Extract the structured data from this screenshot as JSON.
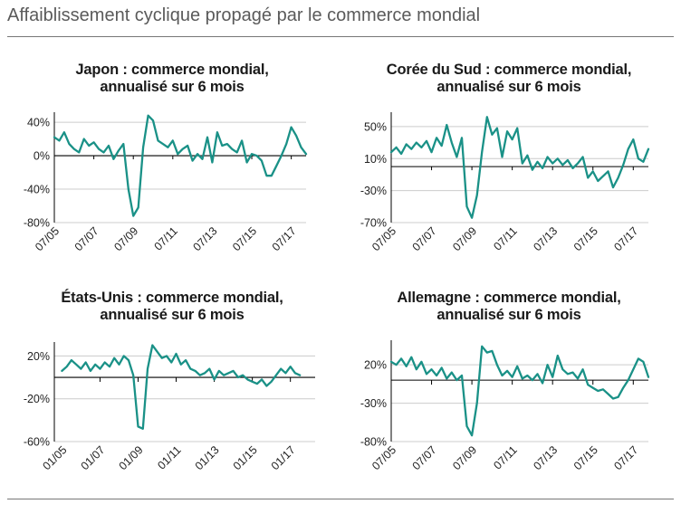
{
  "title": "Affaiblissement cyclique propagé par le commerce mondial",
  "colors": {
    "line": "#1a9187",
    "grid": "#cccccc",
    "axis": "#000000",
    "text": "#222222"
  },
  "chart_data": [
    {
      "type": "line",
      "id": "japon",
      "title_lines": [
        "Japon : commerce mondial,",
        "annualisé sur 6 mois"
      ],
      "title": "Japon : commerce mondial, annualisé sur 6 mois",
      "y_ticks": [
        40,
        0,
        -40,
        -80
      ],
      "y_tick_labels": [
        "40%",
        "0%",
        "-40%",
        "-80%"
      ],
      "ylim": [
        -80,
        52
      ],
      "baseline": 0,
      "xlim": [
        2005.0,
        2017.75
      ],
      "x_ticks": [
        2005.0,
        2007.0,
        2009.0,
        2011.0,
        2013.0,
        2015.0,
        2017.0
      ],
      "x_tick_labels": [
        "07/05",
        "07/07",
        "07/09",
        "07/11",
        "07/13",
        "07/15",
        "07/17"
      ],
      "grid": true,
      "x": [
        2005.0,
        2005.25,
        2005.5,
        2005.75,
        2006.0,
        2006.25,
        2006.5,
        2006.75,
        2007.0,
        2007.25,
        2007.5,
        2007.75,
        2008.0,
        2008.25,
        2008.5,
        2008.75,
        2009.0,
        2009.25,
        2009.5,
        2009.75,
        2010.0,
        2010.25,
        2010.5,
        2010.75,
        2011.0,
        2011.25,
        2011.5,
        2011.75,
        2012.0,
        2012.25,
        2012.5,
        2012.75,
        2013.0,
        2013.25,
        2013.5,
        2013.75,
        2014.0,
        2014.25,
        2014.5,
        2014.75,
        2015.0,
        2015.25,
        2015.5,
        2015.75,
        2016.0,
        2016.25,
        2016.5,
        2016.75,
        2017.0,
        2017.25,
        2017.5,
        2017.75
      ],
      "values": [
        22,
        18,
        28,
        14,
        8,
        4,
        20,
        12,
        16,
        8,
        4,
        12,
        -4,
        6,
        14,
        -40,
        -72,
        -62,
        10,
        48,
        42,
        18,
        14,
        10,
        18,
        2,
        8,
        12,
        -6,
        2,
        -4,
        22,
        -8,
        28,
        12,
        14,
        8,
        4,
        18,
        -8,
        2,
        0,
        -6,
        -24,
        -24,
        -12,
        0,
        14,
        34,
        24,
        10,
        2
      ]
    },
    {
      "type": "line",
      "id": "coree",
      "title_lines": [
        "Corée du Sud : commerce mondial,",
        "annualisé sur 6 mois"
      ],
      "title": "Corée du Sud : commerce mondial, annualisé sur 6 mois",
      "y_ticks": [
        50,
        10,
        -30,
        -70
      ],
      "y_tick_labels": [
        "50%",
        "10%",
        "-30%",
        "-70%"
      ],
      "ylim": [
        -70,
        68
      ],
      "baseline": 0,
      "xlim": [
        2005.0,
        2017.75
      ],
      "x_ticks": [
        2005.0,
        2007.0,
        2009.0,
        2011.0,
        2013.0,
        2015.0,
        2017.0
      ],
      "x_tick_labels": [
        "07/05",
        "07/07",
        "07/09",
        "07/11",
        "07/13",
        "07/15",
        "07/17"
      ],
      "grid": true,
      "x": [
        2005.0,
        2005.25,
        2005.5,
        2005.75,
        2006.0,
        2006.25,
        2006.5,
        2006.75,
        2007.0,
        2007.25,
        2007.5,
        2007.75,
        2008.0,
        2008.25,
        2008.5,
        2008.75,
        2009.0,
        2009.25,
        2009.5,
        2009.75,
        2010.0,
        2010.25,
        2010.5,
        2010.75,
        2011.0,
        2011.25,
        2011.5,
        2011.75,
        2012.0,
        2012.25,
        2012.5,
        2012.75,
        2013.0,
        2013.25,
        2013.5,
        2013.75,
        2014.0,
        2014.25,
        2014.5,
        2014.75,
        2015.0,
        2015.25,
        2015.5,
        2015.75,
        2016.0,
        2016.25,
        2016.5,
        2016.75,
        2017.0,
        2017.25,
        2017.5,
        2017.75
      ],
      "values": [
        18,
        24,
        16,
        28,
        22,
        30,
        24,
        32,
        18,
        36,
        26,
        52,
        30,
        12,
        36,
        -50,
        -64,
        -36,
        18,
        62,
        40,
        48,
        12,
        44,
        34,
        48,
        4,
        14,
        -4,
        6,
        -2,
        12,
        4,
        10,
        2,
        8,
        -2,
        4,
        12,
        -14,
        -6,
        -18,
        -12,
        -6,
        -26,
        -14,
        2,
        22,
        34,
        10,
        6,
        22
      ]
    },
    {
      "type": "line",
      "id": "etats-unis",
      "title_lines": [
        "États-Unis : commerce mondial,",
        "annualisé sur 6 mois"
      ],
      "title": "États-Unis : commerce mondial, annualisé sur 6 mois",
      "y_ticks": [
        20,
        -20,
        -60
      ],
      "y_tick_labels": [
        "20%",
        "-20%",
        "-60%"
      ],
      "ylim": [
        -60,
        33
      ],
      "baseline": 0,
      "xlim": [
        2004.6,
        2018.3
      ],
      "x_ticks": [
        2005.0,
        2007.0,
        2009.0,
        2011.0,
        2013.0,
        2015.0,
        2017.0
      ],
      "x_tick_labels": [
        "01/05",
        "01/07",
        "01/09",
        "01/11",
        "01/13",
        "01/15",
        "01/17"
      ],
      "grid": true,
      "x": [
        2005.0,
        2005.25,
        2005.5,
        2005.75,
        2006.0,
        2006.25,
        2006.5,
        2006.75,
        2007.0,
        2007.25,
        2007.5,
        2007.75,
        2008.0,
        2008.25,
        2008.5,
        2008.75,
        2009.0,
        2009.25,
        2009.5,
        2009.75,
        2010.0,
        2010.25,
        2010.5,
        2010.75,
        2011.0,
        2011.25,
        2011.5,
        2011.75,
        2012.0,
        2012.25,
        2012.5,
        2012.75,
        2013.0,
        2013.25,
        2013.5,
        2013.75,
        2014.0,
        2014.25,
        2014.5,
        2014.75,
        2015.0,
        2015.25,
        2015.5,
        2015.75,
        2016.0,
        2016.25,
        2016.5,
        2016.75,
        2017.0,
        2017.25,
        2017.5
      ],
      "values": [
        6,
        10,
        16,
        12,
        8,
        14,
        6,
        12,
        8,
        14,
        10,
        18,
        12,
        20,
        16,
        2,
        -46,
        -48,
        8,
        30,
        24,
        18,
        20,
        14,
        22,
        12,
        16,
        8,
        6,
        2,
        4,
        8,
        -2,
        6,
        2,
        4,
        6,
        0,
        2,
        -2,
        -4,
        -6,
        -2,
        -8,
        -4,
        2,
        8,
        4,
        10,
        4,
        2
      ]
    },
    {
      "type": "line",
      "id": "allemagne",
      "title_lines": [
        "Allemagne : commerce mondial,",
        "annualisé sur 6 mois"
      ],
      "title": "Allemagne : commerce mondial, annualisé sur 6 mois",
      "y_ticks": [
        20,
        -30,
        -80
      ],
      "y_tick_labels": [
        "20%",
        "-30%",
        "-80%"
      ],
      "ylim": [
        -80,
        52
      ],
      "baseline": 0,
      "xlim": [
        2005.0,
        2017.75
      ],
      "x_ticks": [
        2005.0,
        2007.0,
        2009.0,
        2011.0,
        2013.0,
        2015.0,
        2017.0
      ],
      "x_tick_labels": [
        "07/05",
        "07/07",
        "07/09",
        "07/11",
        "07/13",
        "07/15",
        "07/17"
      ],
      "grid": true,
      "x": [
        2005.0,
        2005.25,
        2005.5,
        2005.75,
        2006.0,
        2006.25,
        2006.5,
        2006.75,
        2007.0,
        2007.25,
        2007.5,
        2007.75,
        2008.0,
        2008.25,
        2008.5,
        2008.75,
        2009.0,
        2009.25,
        2009.5,
        2009.75,
        2010.0,
        2010.25,
        2010.5,
        2010.75,
        2011.0,
        2011.25,
        2011.5,
        2011.75,
        2012.0,
        2012.25,
        2012.5,
        2012.75,
        2013.0,
        2013.25,
        2013.5,
        2013.75,
        2014.0,
        2014.25,
        2014.5,
        2014.75,
        2015.0,
        2015.25,
        2015.5,
        2015.75,
        2016.0,
        2016.25,
        2016.5,
        2016.75,
        2017.0,
        2017.25,
        2017.5,
        2017.75
      ],
      "values": [
        24,
        20,
        28,
        18,
        30,
        14,
        24,
        8,
        14,
        6,
        16,
        2,
        10,
        0,
        6,
        -60,
        -72,
        -30,
        44,
        36,
        38,
        20,
        6,
        12,
        4,
        18,
        2,
        6,
        0,
        8,
        -4,
        20,
        4,
        32,
        14,
        8,
        10,
        2,
        14,
        -6,
        -10,
        -14,
        -12,
        -18,
        -24,
        -22,
        -10,
        0,
        14,
        28,
        24,
        4
      ]
    }
  ]
}
